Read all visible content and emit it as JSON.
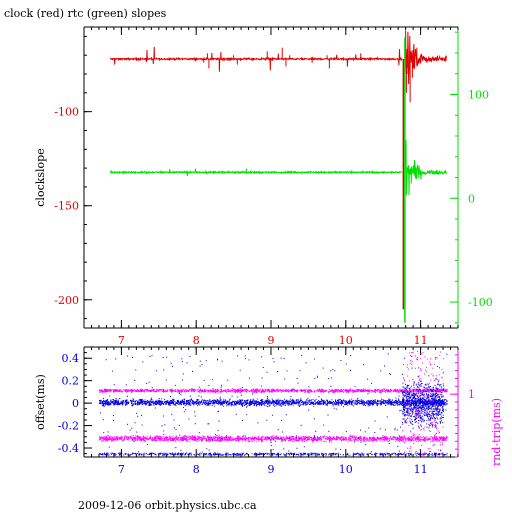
{
  "title": "clock (red) rtc (green) slopes",
  "footer": "2009-12-06 orbit.physics.ubc.ca",
  "colors": {
    "clock": "#e00000",
    "rtc": "#00e000",
    "offset": "#0000e0",
    "rndtrip": "#ff00ff",
    "axis": "#000000"
  },
  "chart_data": [
    {
      "type": "line",
      "xlim": [
        6.5,
        11.5
      ],
      "x_ticks": [
        "7",
        "8",
        "9",
        "10",
        "11"
      ],
      "grid": false,
      "left_axis": {
        "label": "clockslope",
        "color": "#e00000",
        "ylim": [
          -215,
          -55
        ],
        "ticks": [
          "-100",
          "-150",
          "-200"
        ],
        "tick_values": [
          -100,
          -150,
          -200
        ]
      },
      "right_axis": {
        "color": "#00e000",
        "ylim": [
          -125,
          165
        ],
        "ticks": [
          "100",
          "0",
          "-100"
        ],
        "tick_values": [
          100,
          0,
          -100
        ]
      },
      "series": [
        {
          "axis": "left",
          "color": "#e00000",
          "baseline": -72,
          "step": [
            [
              6.5,
              10.8,
              -72
            ],
            [
              10.82,
              11.4,
              -72
            ]
          ],
          "points": [
            [
              6.85,
              -72
            ],
            [
              7.4,
              -71
            ],
            [
              8.1,
              -74
            ],
            [
              8.15,
              -69
            ],
            [
              8.17,
              -77
            ],
            [
              8.45,
              -73
            ],
            [
              8.5,
              -70
            ],
            [
              8.55,
              -75
            ],
            [
              8.95,
              -68
            ],
            [
              9.15,
              -66
            ],
            [
              9.2,
              -76
            ],
            [
              9.25,
              -70
            ],
            [
              9.55,
              -74
            ],
            [
              9.75,
              -70
            ],
            [
              9.78,
              -77
            ],
            [
              10.2,
              -69
            ],
            [
              10.5,
              -72
            ],
            [
              10.72,
              -72
            ],
            [
              10.77,
              -205
            ],
            [
              10.79,
              -140
            ],
            [
              10.81,
              -90
            ],
            [
              10.83,
              -80
            ],
            [
              10.86,
              -95
            ],
            [
              10.89,
              -82
            ],
            [
              10.92,
              -70
            ],
            [
              10.95,
              -66
            ],
            [
              11.0,
              -70
            ],
            [
              11.1,
              -73
            ],
            [
              11.2,
              -71
            ],
            [
              11.35,
              -72
            ]
          ]
        },
        {
          "axis": "right",
          "color": "#00e000",
          "baseline": 25,
          "points": [
            [
              6.85,
              25
            ],
            [
              7.4,
              26
            ],
            [
              8.1,
              24
            ],
            [
              8.5,
              27
            ],
            [
              9.15,
              28
            ],
            [
              9.25,
              23
            ],
            [
              9.75,
              26
            ],
            [
              10.5,
              25
            ],
            [
              10.72,
              25
            ],
            [
              10.77,
              155
            ],
            [
              10.79,
              -120
            ],
            [
              10.81,
              60
            ],
            [
              10.84,
              10
            ],
            [
              10.87,
              40
            ],
            [
              10.9,
              15
            ],
            [
              10.95,
              30
            ],
            [
              11.05,
              22
            ],
            [
              11.2,
              26
            ],
            [
              11.35,
              25
            ]
          ]
        }
      ]
    },
    {
      "type": "scatter",
      "xlim": [
        6.5,
        11.5
      ],
      "x_ticks": [
        "7",
        "8",
        "9",
        "10",
        "11"
      ],
      "grid": false,
      "left_axis": {
        "label": "offset(ms)",
        "color": "#0000e0",
        "ylim": [
          -0.48,
          0.5
        ],
        "ticks": [
          "0.4",
          "0.2",
          "0",
          "-0.2",
          "-0.4"
        ],
        "tick_values": [
          0.4,
          0.2,
          0,
          -0.2,
          -0.4
        ]
      },
      "right_axis": {
        "label": "rnd-trip(ms)",
        "color": "#ff00ff",
        "ylim": [
          0.2,
          1.6
        ],
        "ticks": [
          "1"
        ],
        "tick_values": [
          1
        ]
      },
      "series": [
        {
          "axis": "left",
          "color": "#0000e0",
          "band": {
            "x": [
              6.7,
              11.35
            ],
            "center": 0.01,
            "spread": 0.04
          },
          "burst": {
            "x": [
              10.75,
              11.3
            ],
            "spread": 0.45
          }
        },
        {
          "axis": "right",
          "color": "#ff00ff",
          "band": {
            "x": [
              6.7,
              11.35
            ],
            "center": 1.05,
            "spread": 0.03
          }
        },
        {
          "axis": "right",
          "color": "#ff00ff",
          "band": {
            "x": [
              6.7,
              11.35
            ],
            "center": 0.44,
            "spread": 0.05
          }
        }
      ]
    }
  ]
}
